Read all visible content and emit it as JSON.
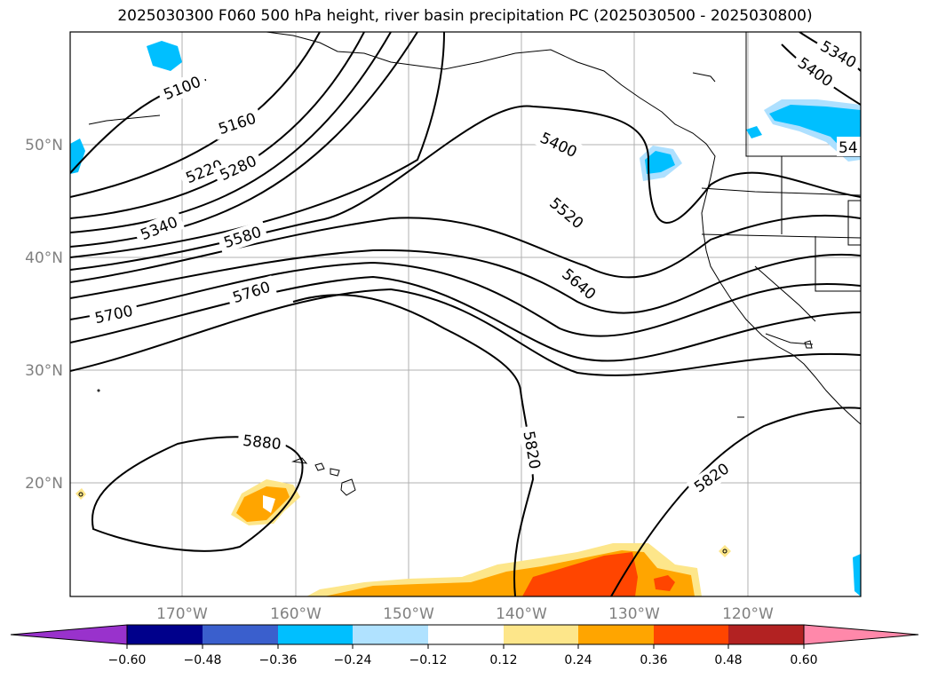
{
  "title": "2025030300 F060 500 hPa height, river basin precipitation PC (2025030500 - 2025030800)",
  "map": {
    "lat_labels": [
      "50°N",
      "40°N",
      "30°N",
      "20°N"
    ],
    "lon_labels": [
      "170°W",
      "160°W",
      "150°W",
      "140°W",
      "130°W",
      "120°W"
    ],
    "contour_labels": [
      "5100",
      "5160",
      "5220",
      "5280",
      "5340",
      "5580",
      "5700",
      "5760",
      "5400",
      "5520",
      "5640",
      "5880",
      "5820",
      "5820",
      "5340",
      "5400",
      "54"
    ],
    "precip_colors": {
      "pos_light": "#fde68a",
      "pos_mid": "#ffa500",
      "pos_high": "#ff4500",
      "neg_mid": "#00bfff",
      "neg_light": "#aee0ff"
    }
  },
  "colorbar": {
    "ticks": [
      "−0.60",
      "−0.48",
      "−0.36",
      "−0.24",
      "−0.12",
      "0.12",
      "0.24",
      "0.36",
      "0.48",
      "0.60"
    ],
    "colors": [
      "#9932cc",
      "#00008b",
      "#3a5fcd",
      "#00bfff",
      "#b0e2ff",
      "#ffffff",
      "#fde68a",
      "#ffa500",
      "#ff4500",
      "#b22222",
      "#ff88aa"
    ]
  }
}
